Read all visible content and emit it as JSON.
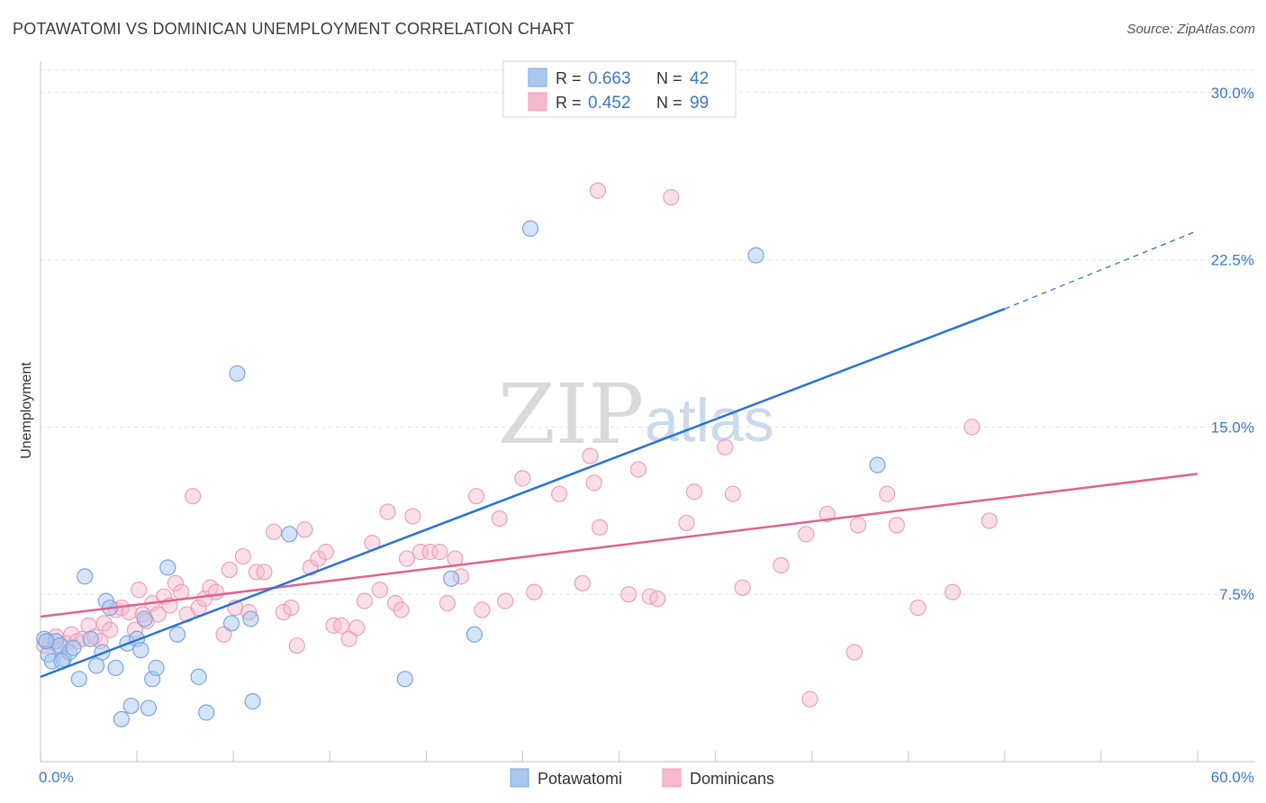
{
  "header": {
    "title": "POTAWATOMI VS DOMINICAN UNEMPLOYMENT CORRELATION CHART",
    "source": "Source: ZipAtlas.com"
  },
  "watermark": {
    "zip": "ZIP",
    "atlas": "atlas"
  },
  "legend": {
    "r_label": "R =",
    "n_label": "N =",
    "entries": [
      {
        "name": "Potawatomi",
        "r": "0.663",
        "n": "42"
      },
      {
        "name": "Dominicans",
        "r": "0.452",
        "n": "99"
      }
    ]
  },
  "colors": {
    "potawatomi_fill": "#a9c8f0",
    "potawatomi_stroke": "#7aa6e0",
    "potawatomi_line": "#2872d6",
    "dominicans_fill": "#f6b8cb",
    "dominicans_stroke": "#ef9fb8",
    "dominicans_line": "#e0638f",
    "tick": "#3b78c8"
  },
  "chart_data": {
    "type": "scatter",
    "title": "POTAWATOMI VS DOMINICAN UNEMPLOYMENT CORRELATION CHART",
    "xlabel": "",
    "ylabel": "Unemployment",
    "xlim": [
      0,
      60
    ],
    "ylim": [
      0,
      31
    ],
    "x_tick_labels": [
      "0.0%",
      "60.0%"
    ],
    "y_ticks": [
      7.5,
      15.0,
      22.5,
      30.0
    ],
    "y_tick_labels": [
      "7.5%",
      "15.0%",
      "22.5%",
      "30.0%"
    ],
    "grid": "horizontal dashed",
    "legend_position": "top-center",
    "series": [
      {
        "name": "Potawatomi",
        "r": 0.663,
        "n": 42,
        "trend": {
          "x0": 0,
          "y0": 3.8,
          "x1": 50,
          "y1": 20.3,
          "dashed_to_x": 60,
          "dashed_to_y": 23.8
        },
        "points": [
          [
            0.2,
            5.5
          ],
          [
            0.4,
            4.8
          ],
          [
            0.6,
            4.5
          ],
          [
            0.8,
            5.4
          ],
          [
            1.0,
            5.2
          ],
          [
            1.2,
            4.6
          ],
          [
            1.5,
            4.9
          ],
          [
            1.7,
            5.1
          ],
          [
            2.0,
            3.7
          ],
          [
            2.3,
            8.3
          ],
          [
            2.6,
            5.5
          ],
          [
            2.9,
            4.3
          ],
          [
            3.2,
            4.9
          ],
          [
            3.4,
            7.2
          ],
          [
            3.6,
            6.9
          ],
          [
            3.9,
            4.2
          ],
          [
            4.2,
            1.9
          ],
          [
            4.5,
            5.3
          ],
          [
            4.7,
            2.5
          ],
          [
            5.0,
            5.5
          ],
          [
            5.2,
            5.0
          ],
          [
            5.4,
            6.4
          ],
          [
            5.6,
            2.4
          ],
          [
            5.8,
            3.7
          ],
          [
            6.0,
            4.2
          ],
          [
            6.6,
            8.7
          ],
          [
            7.1,
            5.7
          ],
          [
            8.2,
            3.8
          ],
          [
            8.6,
            2.2
          ],
          [
            9.9,
            6.2
          ],
          [
            10.2,
            17.4
          ],
          [
            10.9,
            6.4
          ],
          [
            11.0,
            2.7
          ],
          [
            12.9,
            10.2
          ],
          [
            18.9,
            3.7
          ],
          [
            21.3,
            8.2
          ],
          [
            22.5,
            5.7
          ],
          [
            25.4,
            23.9
          ],
          [
            37.1,
            22.7
          ],
          [
            43.4,
            13.3
          ],
          [
            0.3,
            5.4
          ],
          [
            1.1,
            4.5
          ]
        ]
      },
      {
        "name": "Dominicans",
        "r": 0.452,
        "n": 99,
        "trend": {
          "x0": 0,
          "y0": 6.5,
          "x1": 60,
          "y1": 12.9
        },
        "points": [
          [
            0.2,
            5.2
          ],
          [
            0.5,
            5.4
          ],
          [
            0.8,
            5.6
          ],
          [
            1.0,
            5.0
          ],
          [
            1.3,
            5.3
          ],
          [
            1.6,
            5.7
          ],
          [
            1.9,
            5.4
          ],
          [
            2.2,
            5.5
          ],
          [
            2.5,
            6.1
          ],
          [
            2.8,
            5.6
          ],
          [
            3.1,
            5.4
          ],
          [
            3.3,
            6.2
          ],
          [
            3.6,
            5.9
          ],
          [
            3.9,
            6.8
          ],
          [
            4.2,
            6.9
          ],
          [
            4.6,
            6.7
          ],
          [
            4.9,
            5.9
          ],
          [
            5.1,
            7.7
          ],
          [
            5.3,
            6.6
          ],
          [
            5.5,
            6.3
          ],
          [
            5.8,
            7.1
          ],
          [
            6.1,
            6.6
          ],
          [
            6.4,
            7.4
          ],
          [
            6.7,
            7.0
          ],
          [
            7.0,
            8.0
          ],
          [
            7.3,
            7.6
          ],
          [
            7.6,
            6.6
          ],
          [
            7.9,
            11.9
          ],
          [
            8.2,
            6.9
          ],
          [
            8.5,
            7.3
          ],
          [
            8.8,
            7.8
          ],
          [
            9.1,
            7.6
          ],
          [
            9.5,
            5.7
          ],
          [
            9.8,
            8.6
          ],
          [
            10.1,
            6.9
          ],
          [
            10.5,
            9.2
          ],
          [
            10.8,
            6.7
          ],
          [
            11.2,
            8.5
          ],
          [
            11.6,
            8.5
          ],
          [
            12.1,
            10.3
          ],
          [
            12.6,
            6.7
          ],
          [
            13.0,
            6.9
          ],
          [
            13.3,
            5.2
          ],
          [
            13.7,
            10.4
          ],
          [
            14.0,
            8.7
          ],
          [
            14.4,
            9.1
          ],
          [
            14.8,
            9.4
          ],
          [
            15.2,
            6.1
          ],
          [
            15.6,
            6.1
          ],
          [
            16.0,
            5.5
          ],
          [
            16.4,
            6.0
          ],
          [
            16.8,
            7.2
          ],
          [
            17.2,
            9.8
          ],
          [
            17.6,
            7.7
          ],
          [
            18.0,
            11.2
          ],
          [
            18.4,
            7.1
          ],
          [
            18.7,
            6.8
          ],
          [
            19.0,
            9.1
          ],
          [
            19.3,
            11.0
          ],
          [
            19.7,
            9.4
          ],
          [
            20.2,
            9.4
          ],
          [
            20.7,
            9.4
          ],
          [
            21.1,
            7.1
          ],
          [
            21.5,
            9.1
          ],
          [
            21.8,
            8.3
          ],
          [
            22.6,
            11.9
          ],
          [
            22.9,
            6.8
          ],
          [
            23.8,
            10.9
          ],
          [
            24.1,
            7.2
          ],
          [
            25.0,
            12.7
          ],
          [
            25.6,
            7.6
          ],
          [
            26.9,
            12.0
          ],
          [
            28.1,
            8.0
          ],
          [
            28.5,
            13.7
          ],
          [
            28.7,
            12.5
          ],
          [
            28.9,
            25.6
          ],
          [
            29.0,
            10.5
          ],
          [
            30.5,
            7.5
          ],
          [
            31.0,
            13.1
          ],
          [
            31.6,
            7.4
          ],
          [
            32.0,
            7.3
          ],
          [
            32.7,
            25.3
          ],
          [
            33.5,
            10.7
          ],
          [
            33.9,
            12.1
          ],
          [
            35.5,
            14.1
          ],
          [
            35.9,
            12.0
          ],
          [
            36.4,
            7.8
          ],
          [
            38.4,
            8.8
          ],
          [
            39.7,
            10.2
          ],
          [
            39.9,
            2.8
          ],
          [
            40.8,
            11.1
          ],
          [
            42.2,
            4.9
          ],
          [
            42.4,
            10.6
          ],
          [
            43.9,
            12.0
          ],
          [
            44.4,
            10.6
          ],
          [
            45.5,
            6.9
          ],
          [
            47.3,
            7.6
          ],
          [
            48.3,
            15.0
          ],
          [
            49.2,
            10.8
          ]
        ]
      }
    ]
  }
}
